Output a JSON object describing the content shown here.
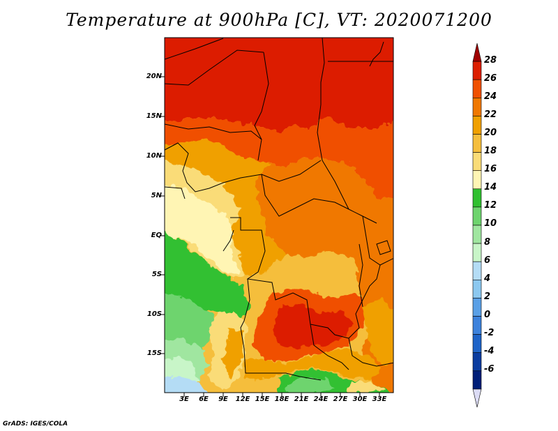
{
  "title": "Temperature at 900hPa [C], VT: 2020071200",
  "credit": "GrADS: IGES/COLA",
  "map": {
    "variable": "Temperature",
    "level": "900hPa",
    "units": "C",
    "valid_time": "2020071200",
    "lat_labels": [
      "20N",
      "15N",
      "10N",
      "5N",
      "EQ",
      "5S",
      "10S",
      "15S"
    ],
    "lon_labels": [
      "3E",
      "6E",
      "9E",
      "12E",
      "15E",
      "18E",
      "21E",
      "24E",
      "27E",
      "30E",
      "33E"
    ]
  },
  "colorbar": {
    "levels": [
      "28",
      "26",
      "24",
      "22",
      "20",
      "18",
      "16",
      "14",
      "12",
      "10",
      "8",
      "6",
      "4",
      "2",
      "0",
      "-2",
      "-4",
      "-6"
    ],
    "colors": [
      "#a00000",
      "#dc1e00",
      "#f05000",
      "#f07800",
      "#f0a000",
      "#f5be3c",
      "#fadc78",
      "#fff5b4",
      "#30c030",
      "#6ed46e",
      "#a0e6a0",
      "#c8f5c8",
      "#b4dcf5",
      "#8cc8f0",
      "#5aa0e6",
      "#3c82dc",
      "#1e64c8",
      "#0a3ca0",
      "#001e78",
      "#dcdcf5"
    ]
  }
}
